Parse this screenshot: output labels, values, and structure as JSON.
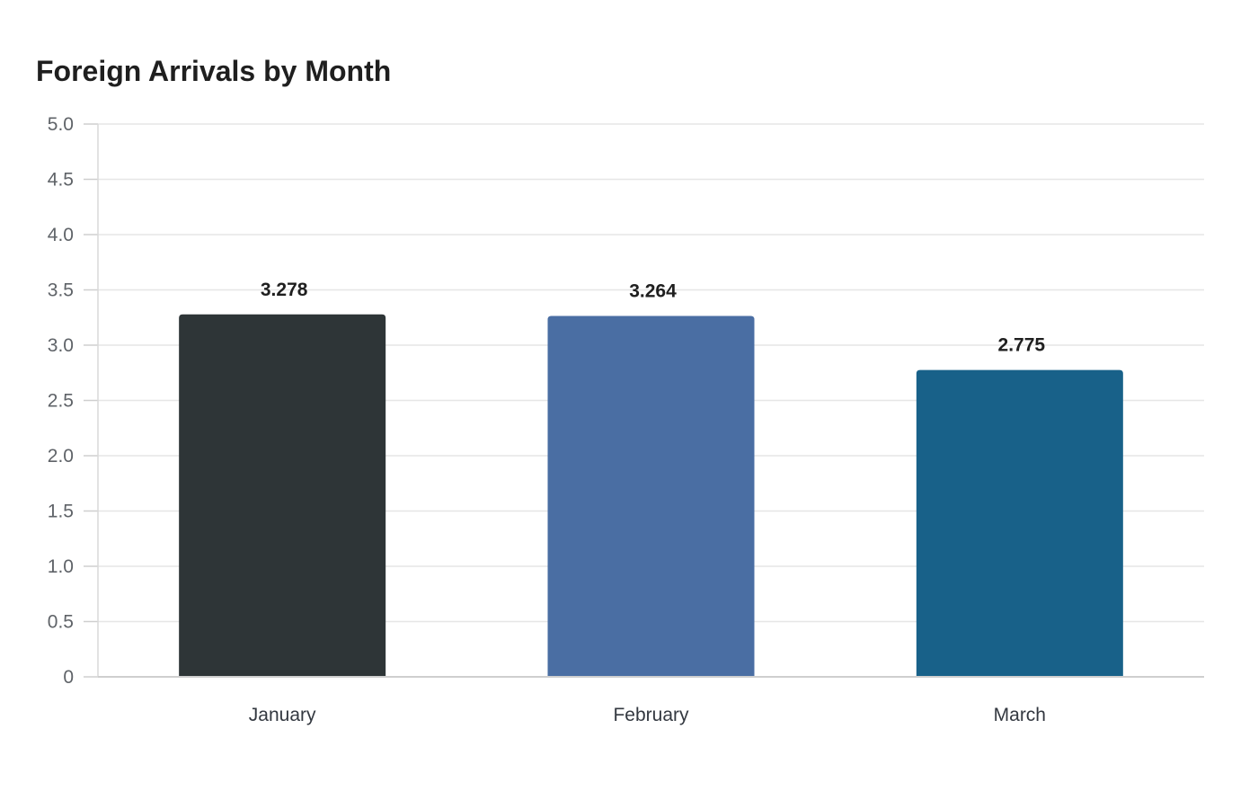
{
  "chart_data": {
    "type": "bar",
    "title": "Foreign Arrivals by Month",
    "xlabel": "",
    "ylabel": "",
    "categories": [
      "January",
      "February",
      "March"
    ],
    "values": [
      3.278,
      3.264,
      2.775
    ],
    "data_labels": [
      "3.278",
      "3.264",
      "2.775"
    ],
    "colors": [
      "#2e3537",
      "#4a6ea3",
      "#186189"
    ],
    "ylim": [
      0,
      5
    ],
    "yticks": [
      0,
      0.5,
      1,
      1.5,
      2,
      2.5,
      3,
      3.5,
      4,
      4.5,
      5
    ],
    "ytick_labels": [
      "0",
      "0.5",
      "1.0",
      "1.5",
      "2.0",
      "2.5",
      "3.0",
      "3.5",
      "4.0",
      "4.5",
      "5.0"
    ],
    "grid": true,
    "legend": "none"
  }
}
